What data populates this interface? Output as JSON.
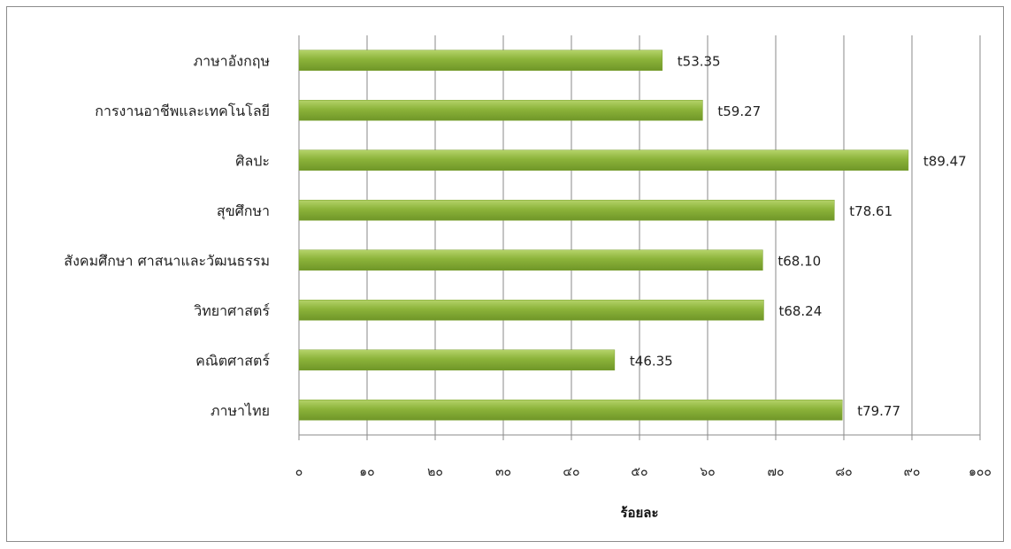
{
  "chart_data": {
    "type": "bar",
    "orientation": "horizontal",
    "categories": [
      "ภาษาอังกฤษ",
      "การงานอาชีพและเทคโนโลยี",
      "ศิลปะ",
      "สุขศึกษา",
      "สังคมศึกษา ศาสนาและวัฒนธรรม",
      "วิทยาศาสตร์",
      "คณิตศาสตร์",
      "ภาษาไทย"
    ],
    "values": [
      53.35,
      59.27,
      89.47,
      78.61,
      68.1,
      68.24,
      46.35,
      79.77
    ],
    "data_labels": [
      "t53.35",
      "t59.27",
      "t89.47",
      "t78.61",
      "t68.10",
      "t68.24",
      "t46.35",
      "t79.77"
    ],
    "xticks": [
      0,
      10,
      20,
      30,
      40,
      50,
      60,
      70,
      80,
      90,
      100
    ],
    "xtick_labels": [
      "๐",
      "๑๐",
      "๒๐",
      "๓๐",
      "๔๐",
      "๕๐",
      "๖๐",
      "๗๐",
      "๘๐",
      "๙๐",
      "๑๐๐"
    ],
    "xlabel": "ร้อยละ",
    "ylabel": "",
    "title": "",
    "xlim": [
      0,
      100
    ],
    "grid": "vertical",
    "legend": "none",
    "bar_color": "#8cb33a"
  }
}
